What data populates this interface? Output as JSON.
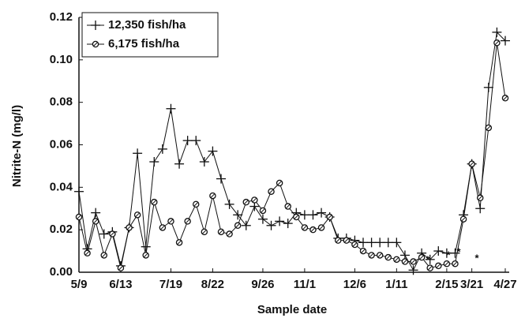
{
  "chart_data": {
    "type": "line",
    "xlabel": "Sample date",
    "ylabel": "Nitrite-N (mg/l)",
    "categories": [
      "5/9",
      null,
      null,
      null,
      null,
      "6/13",
      null,
      null,
      null,
      null,
      null,
      "7/19",
      null,
      null,
      null,
      null,
      "8/22",
      null,
      null,
      null,
      null,
      null,
      "9/26",
      null,
      null,
      null,
      null,
      "11/1",
      null,
      null,
      null,
      null,
      null,
      "12/6",
      null,
      null,
      null,
      null,
      "1/11",
      null,
      null,
      null,
      null,
      null,
      "2/15",
      null,
      null,
      "3/21",
      null,
      null,
      null,
      "4/27"
    ],
    "series": [
      {
        "name": "12,350 fish/ha",
        "color": "#111111",
        "marker": "plus",
        "values": [
          0.038,
          0.011,
          0.028,
          0.018,
          0.019,
          0.003,
          0.021,
          0.056,
          0.012,
          0.052,
          0.058,
          0.077,
          0.051,
          0.062,
          0.062,
          0.052,
          0.057,
          0.044,
          0.032,
          0.027,
          0.022,
          0.031,
          0.025,
          0.022,
          0.024,
          0.023,
          0.028,
          0.027,
          0.027,
          0.028,
          0.026,
          0.016,
          0.016,
          0.015,
          0.014,
          0.014,
          0.014,
          0.014,
          0.014,
          0.008,
          0.001,
          0.009,
          0.006,
          0.01,
          0.009,
          0.009,
          0.027,
          0.051,
          0.03,
          0.087,
          0.113,
          0.109
        ]
      },
      {
        "name": "6,175 fish/ha",
        "color": "#111111",
        "marker": "circle",
        "values": [
          0.026,
          0.009,
          0.024,
          0.008,
          0.018,
          0.002,
          0.021,
          0.027,
          0.008,
          0.033,
          0.021,
          0.024,
          0.014,
          0.024,
          0.032,
          0.019,
          0.036,
          0.019,
          0.018,
          0.022,
          0.033,
          0.034,
          0.029,
          0.038,
          0.042,
          0.031,
          0.026,
          0.021,
          0.02,
          0.021,
          0.026,
          0.015,
          0.015,
          0.013,
          0.01,
          0.008,
          0.008,
          0.007,
          0.006,
          0.005,
          0.005,
          0.007,
          0.002,
          0.003,
          0.004,
          0.004,
          0.025,
          0.051,
          0.035,
          0.068,
          0.108,
          0.082
        ]
      }
    ],
    "annotations": [
      "*",
      "*",
      "*",
      "*"
    ],
    "ylim": [
      0,
      0.12
    ],
    "yticks": [
      {
        "value": 0,
        "label": "0.00"
      },
      0.02,
      0.04,
      0.06,
      0.08,
      {
        "value": 0.1,
        "label": "0.10"
      },
      0.12
    ],
    "grid": false,
    "legend": "upper left"
  }
}
